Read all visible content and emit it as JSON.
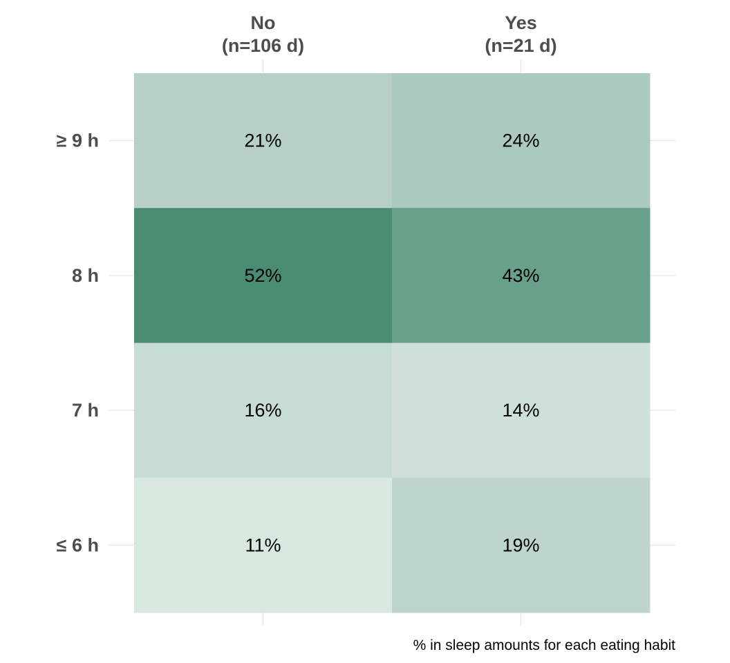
{
  "chart_data": {
    "type": "heatmap",
    "columns": [
      {
        "name": "No",
        "count": "(n=106 d)"
      },
      {
        "name": "Yes",
        "count": "(n=21 d)"
      }
    ],
    "rows": [
      "≥ 9 h",
      "8 h",
      "7 h",
      "≤ 6 h"
    ],
    "values": [
      [
        21,
        24
      ],
      [
        52,
        43
      ],
      [
        16,
        14
      ],
      [
        11,
        19
      ]
    ],
    "value_unit": "%",
    "caption": "% in sleep amounts for each eating habit",
    "color_scale": {
      "low": "#ffffff",
      "high": "#2e7a5e",
      "max_value": 60
    },
    "grid": true,
    "legend": "none"
  }
}
